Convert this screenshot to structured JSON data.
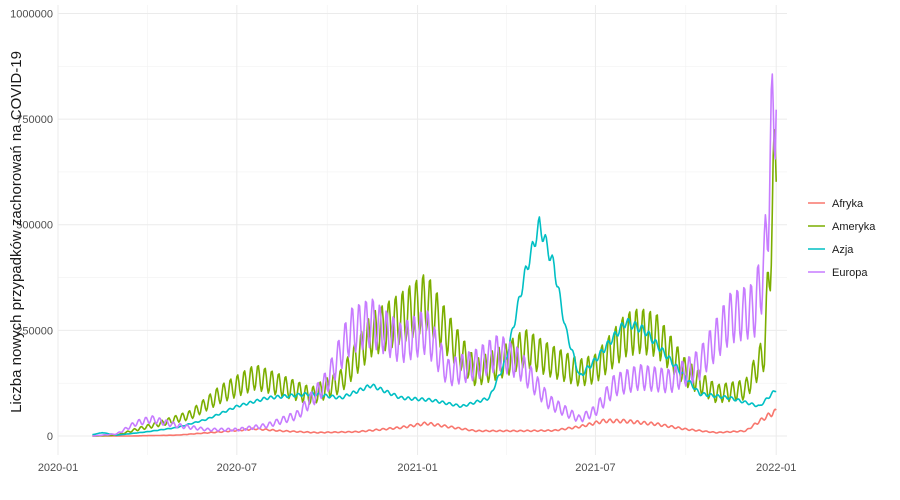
{
  "chart_data": {
    "type": "line",
    "title": "",
    "xlabel": "",
    "ylabel": "Liczba nowych przypadków zachorowań na COVID-19",
    "x_range": [
      "2020-01-01",
      "2022-01-12"
    ],
    "ylim": [
      -45000,
      1020000
    ],
    "x_ticks": [
      {
        "date": "2020-01-01",
        "label": "2020-01"
      },
      {
        "date": "2020-07-01",
        "label": "2020-07"
      },
      {
        "date": "2021-01-01",
        "label": "2021-01"
      },
      {
        "date": "2021-07-01",
        "label": "2021-07"
      },
      {
        "date": "2022-01-01",
        "label": "2022-01"
      }
    ],
    "y_ticks": [
      {
        "value": 0,
        "label": "0"
      },
      {
        "value": 250000,
        "label": "250000"
      },
      {
        "value": 500000,
        "label": "500000"
      },
      {
        "value": 750000,
        "label": "750000"
      },
      {
        "value": 1000000,
        "label": "1000000"
      }
    ],
    "grid": true,
    "legend": "right",
    "series": [
      {
        "name": "Afryka",
        "color": "#F8766D",
        "points": [
          [
            "2020-02-05",
            0
          ],
          [
            "2020-03-15",
            0
          ],
          [
            "2020-05-01",
            2000
          ],
          [
            "2020-06-15",
            10000
          ],
          [
            "2020-07-20",
            17000
          ],
          [
            "2020-08-15",
            12000
          ],
          [
            "2020-09-20",
            8000
          ],
          [
            "2020-11-01",
            10000
          ],
          [
            "2020-12-15",
            20000
          ],
          [
            "2021-01-10",
            30000
          ],
          [
            "2021-02-01",
            22000
          ],
          [
            "2021-03-01",
            12000
          ],
          [
            "2021-04-15",
            12000
          ],
          [
            "2021-05-20",
            13000
          ],
          [
            "2021-06-15",
            22000
          ],
          [
            "2021-07-10",
            36000
          ],
          [
            "2021-08-01",
            35000
          ],
          [
            "2021-09-01",
            28000
          ],
          [
            "2021-10-01",
            16000
          ],
          [
            "2021-11-01",
            8000
          ],
          [
            "2021-12-01",
            12000
          ],
          [
            "2021-12-15",
            35000
          ],
          [
            "2021-12-25",
            50000
          ],
          [
            "2022-01-01",
            58000
          ]
        ]
      },
      {
        "name": "Ameryka",
        "color": "#7CAE00",
        "points": [
          [
            "2020-02-05",
            0
          ],
          [
            "2020-03-01",
            2000
          ],
          [
            "2020-03-20",
            15000
          ],
          [
            "2020-04-15",
            30000
          ],
          [
            "2020-05-15",
            50000
          ],
          [
            "2020-06-15",
            100000
          ],
          [
            "2020-07-20",
            140000
          ],
          [
            "2020-08-15",
            120000
          ],
          [
            "2020-09-15",
            95000
          ],
          [
            "2020-10-15",
            130000
          ],
          [
            "2020-11-15",
            240000
          ],
          [
            "2020-12-15",
            280000
          ],
          [
            "2021-01-10",
            320000
          ],
          [
            "2021-02-01",
            240000
          ],
          [
            "2021-03-01",
            150000
          ],
          [
            "2021-04-01",
            180000
          ],
          [
            "2021-04-20",
            210000
          ],
          [
            "2021-05-15",
            180000
          ],
          [
            "2021-06-15",
            150000
          ],
          [
            "2021-07-01",
            160000
          ],
          [
            "2021-08-01",
            240000
          ],
          [
            "2021-08-15",
            250000
          ],
          [
            "2021-09-01",
            240000
          ],
          [
            "2021-10-01",
            150000
          ],
          [
            "2021-11-01",
            100000
          ],
          [
            "2021-12-01",
            110000
          ],
          [
            "2021-12-20",
            200000
          ],
          [
            "2022-01-01",
            680000
          ]
        ]
      },
      {
        "name": "Azja",
        "color": "#00BFC4",
        "points": [
          [
            "2020-02-05",
            3000
          ],
          [
            "2020-02-15",
            8000
          ],
          [
            "2020-03-01",
            2000
          ],
          [
            "2020-04-01",
            10000
          ],
          [
            "2020-05-01",
            20000
          ],
          [
            "2020-06-01",
            40000
          ],
          [
            "2020-07-01",
            70000
          ],
          [
            "2020-08-01",
            90000
          ],
          [
            "2020-09-15",
            100000
          ],
          [
            "2020-10-15",
            90000
          ],
          [
            "2020-11-15",
            120000
          ],
          [
            "2020-12-15",
            90000
          ],
          [
            "2021-01-15",
            85000
          ],
          [
            "2021-02-15",
            70000
          ],
          [
            "2021-03-15",
            90000
          ],
          [
            "2021-04-01",
            180000
          ],
          [
            "2021-04-20",
            380000
          ],
          [
            "2021-05-05",
            500000
          ],
          [
            "2021-05-20",
            400000
          ],
          [
            "2021-06-01",
            250000
          ],
          [
            "2021-06-15",
            140000
          ],
          [
            "2021-07-01",
            180000
          ],
          [
            "2021-08-01",
            270000
          ],
          [
            "2021-08-20",
            250000
          ],
          [
            "2021-09-15",
            180000
          ],
          [
            "2021-10-15",
            100000
          ],
          [
            "2021-11-15",
            90000
          ],
          [
            "2021-12-15",
            70000
          ],
          [
            "2022-01-01",
            110000
          ]
        ]
      },
      {
        "name": "Europa",
        "color": "#C77CFF",
        "points": [
          [
            "2020-02-05",
            0
          ],
          [
            "2020-03-01",
            5000
          ],
          [
            "2020-03-20",
            30000
          ],
          [
            "2020-04-05",
            40000
          ],
          [
            "2020-05-01",
            25000
          ],
          [
            "2020-06-01",
            15000
          ],
          [
            "2020-07-01",
            15000
          ],
          [
            "2020-08-01",
            25000
          ],
          [
            "2020-09-01",
            50000
          ],
          [
            "2020-10-01",
            130000
          ],
          [
            "2020-10-25",
            250000
          ],
          [
            "2020-11-15",
            270000
          ],
          [
            "2020-12-15",
            220000
          ],
          [
            "2021-01-10",
            250000
          ],
          [
            "2021-02-01",
            150000
          ],
          [
            "2021-03-01",
            170000
          ],
          [
            "2021-03-25",
            200000
          ],
          [
            "2021-04-15",
            170000
          ],
          [
            "2021-05-15",
            80000
          ],
          [
            "2021-06-15",
            40000
          ],
          [
            "2021-07-01",
            60000
          ],
          [
            "2021-07-20",
            120000
          ],
          [
            "2021-08-15",
            140000
          ],
          [
            "2021-09-15",
            130000
          ],
          [
            "2021-10-15",
            170000
          ],
          [
            "2021-11-15",
            280000
          ],
          [
            "2021-12-10",
            300000
          ],
          [
            "2021-12-20",
            400000
          ],
          [
            "2022-01-01",
            880000
          ]
        ]
      }
    ]
  }
}
